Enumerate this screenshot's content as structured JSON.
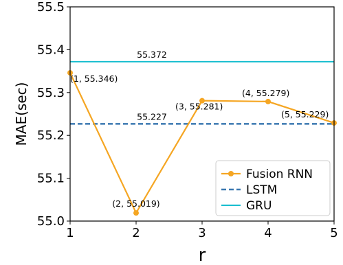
{
  "chart_data": {
    "type": "line",
    "xlabel": "r",
    "ylabel": "MAE(sec)",
    "xlim": [
      1,
      5
    ],
    "ylim": [
      55.0,
      55.5
    ],
    "xticks": [
      "1",
      "2",
      "3",
      "4",
      "5"
    ],
    "yticks": [
      "55.0",
      "55.1",
      "55.2",
      "55.3",
      "55.4",
      "55.5"
    ],
    "series": [
      {
        "name": "Fusion RNN",
        "color": "#f5a623",
        "style": "solid-with-markers",
        "x": [
          1,
          2,
          3,
          4,
          5
        ],
        "y": [
          55.346,
          55.019,
          55.281,
          55.279,
          55.229
        ],
        "labels": [
          "(1, 55.346)",
          "(2, 55.019)",
          "(3, 55.281)",
          "(4, 55.279)",
          "(5, 55.229)"
        ]
      },
      {
        "name": "LSTM",
        "color": "#3a78b0",
        "style": "dashed",
        "value": 55.227,
        "label": "55.227"
      },
      {
        "name": "GRU",
        "color": "#17becf",
        "style": "solid",
        "value": 55.372,
        "label": "55.372"
      }
    ],
    "legend": {
      "placement": "bottom-right"
    },
    "grid": false
  }
}
